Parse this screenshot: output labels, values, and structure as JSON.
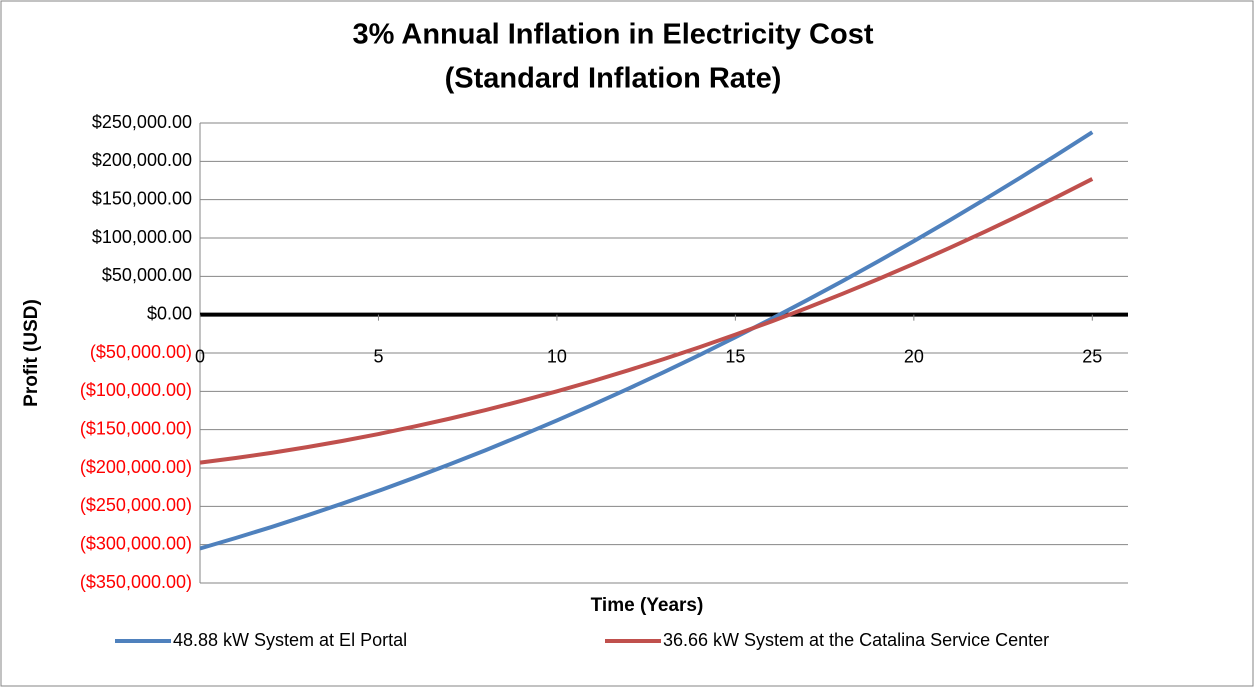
{
  "chart_data": {
    "type": "line",
    "title": "3% Annual Inflation in Electricity Cost",
    "subtitle": "(Standard Inflation Rate)",
    "x_label": "Time (Years)",
    "y_label": "Profit (USD)",
    "x": [
      0,
      1,
      2,
      3,
      4,
      5,
      6,
      7,
      8,
      9,
      10,
      11,
      12,
      13,
      14,
      15,
      16,
      17,
      18,
      19,
      20,
      21,
      22,
      23,
      24,
      25
    ],
    "xlim": [
      0,
      26
    ],
    "xticks": [
      0,
      5,
      10,
      15,
      20,
      25
    ],
    "ylim": [
      -350000,
      250000
    ],
    "yticks": [
      {
        "value": 250000,
        "label": "$250,000.00"
      },
      {
        "value": 200000,
        "label": "$200,000.00"
      },
      {
        "value": 150000,
        "label": "$150,000.00"
      },
      {
        "value": 100000,
        "label": "$100,000.00"
      },
      {
        "value": 50000,
        "label": "$50,000.00"
      },
      {
        "value": 0,
        "label": "$0.00"
      },
      {
        "value": -50000,
        "label": "($50,000.00)"
      },
      {
        "value": -100000,
        "label": "($100,000.00)"
      },
      {
        "value": -150000,
        "label": "($150,000.00)"
      },
      {
        "value": -200000,
        "label": "($200,000.00)"
      },
      {
        "value": -250000,
        "label": "($250,000.00)"
      },
      {
        "value": -300000,
        "label": "($300,000.00)"
      },
      {
        "value": -350000,
        "label": "($350,000.00)"
      }
    ],
    "negative_tick_color": "#ff0000",
    "grid": true,
    "legend": "bottom",
    "series": [
      {
        "name": "48.88 kW System at El Portal",
        "color": "#4f81bd",
        "values": [
          -305000,
          -291300,
          -277000,
          -261900,
          -246200,
          -229900,
          -212800,
          -195100,
          -176800,
          -157700,
          -138000,
          -117600,
          -96600,
          -74800,
          -52500,
          -29400,
          -5700,
          18700,
          43800,
          69500,
          95900,
          123000,
          150800,
          179200,
          208300,
          238000
        ]
      },
      {
        "name": "36.66 kW System at the Catalina Service Center",
        "color": "#c0504d",
        "values": [
          -193000,
          -187000,
          -180300,
          -172800,
          -164600,
          -155700,
          -146000,
          -135600,
          -124500,
          -112600,
          -100000,
          -86700,
          -72600,
          -57800,
          -42300,
          -26000,
          -9000,
          8700,
          27200,
          46400,
          66300,
          87000,
          108400,
          130500,
          153400,
          177000
        ]
      }
    ]
  }
}
